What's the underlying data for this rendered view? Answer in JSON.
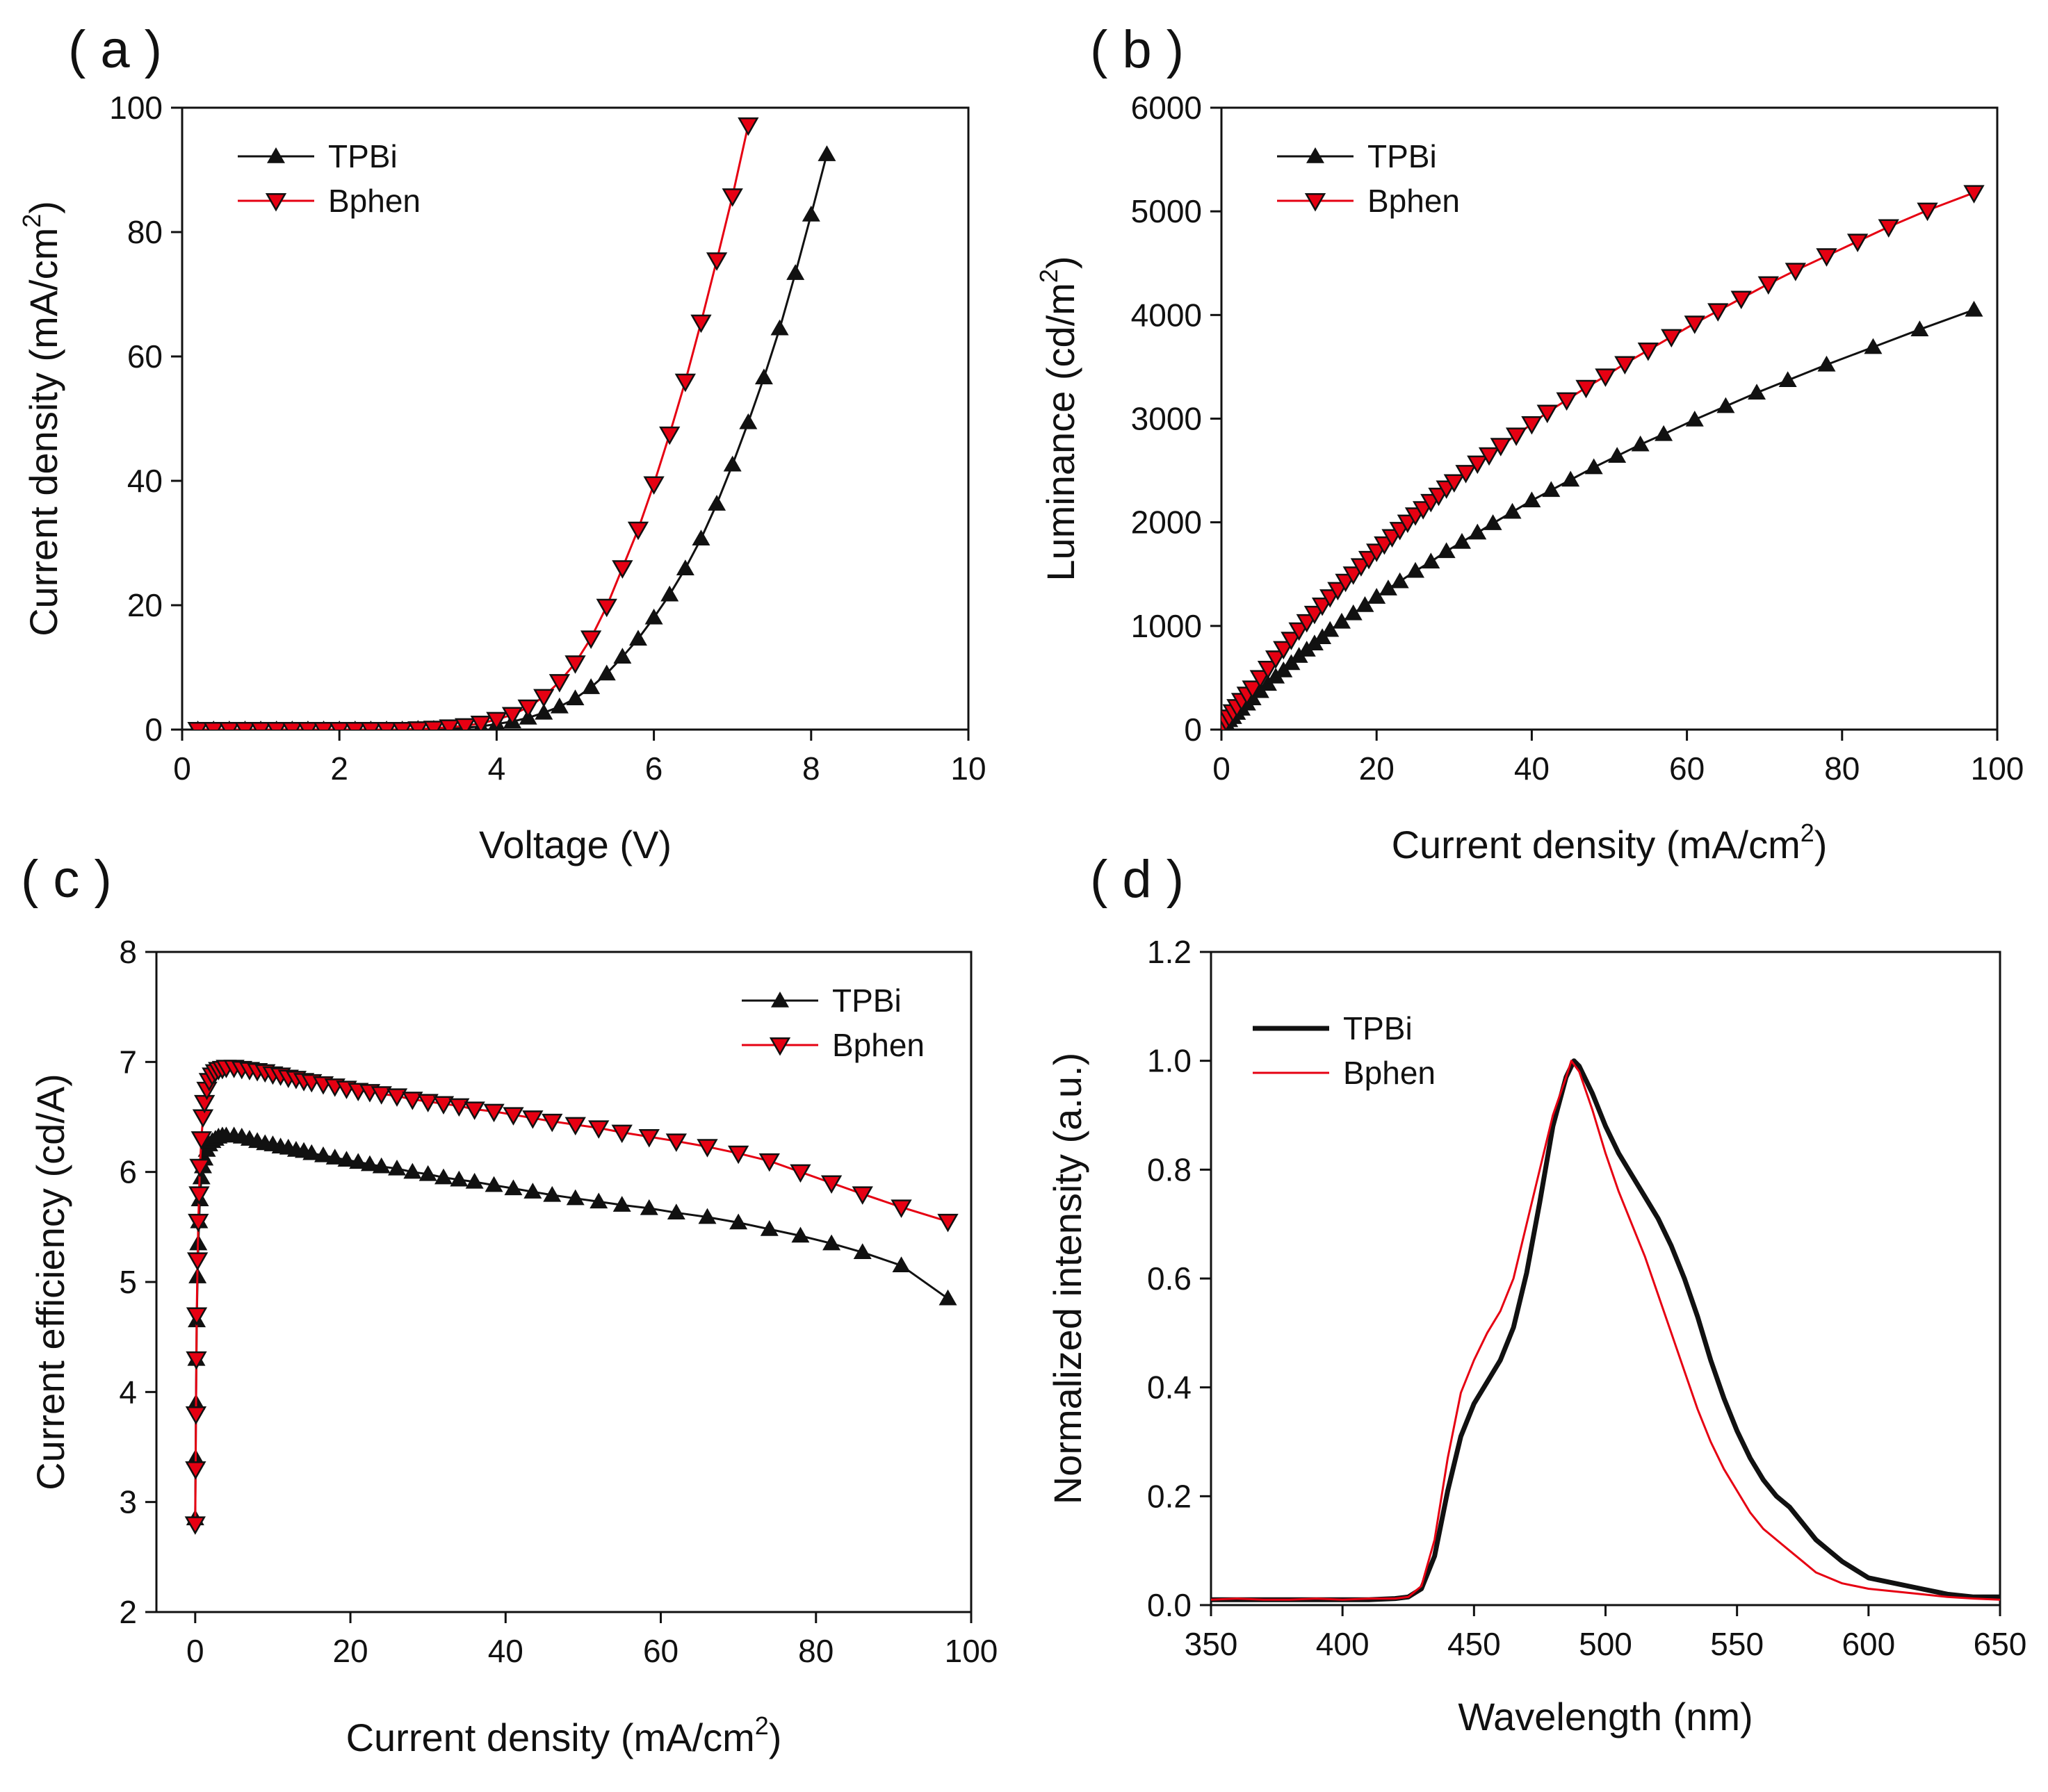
{
  "figure": {
    "panels": [
      {
        "label": "( a )"
      },
      {
        "label": "( b )"
      },
      {
        "label": "( c )"
      },
      {
        "label": "( d )"
      }
    ]
  },
  "colors": {
    "tpbi": "#111111",
    "bphen": "#e60012",
    "bphen_marker_edge": "#111111",
    "axis": "#111111"
  },
  "chart_data": [
    {
      "id": "a",
      "type": "line",
      "xlabel": "Voltage (V)",
      "ylabel": "Current density (mA/cm",
      "ylabel_sup": "2",
      "ylabel_tail": ")",
      "xlim": [
        0,
        10
      ],
      "ylim": [
        0,
        100
      ],
      "xticks": [
        0,
        2,
        4,
        6,
        8,
        10
      ],
      "yticks": [
        0,
        20,
        40,
        60,
        80,
        100
      ],
      "legend": "top-left",
      "series": [
        {
          "name": "TPBi",
          "marker": "triangle-up",
          "x": [
            0.2,
            0.4,
            0.6,
            0.8,
            1.0,
            1.2,
            1.4,
            1.6,
            1.8,
            2.0,
            2.2,
            2.4,
            2.6,
            2.8,
            3.0,
            3.2,
            3.4,
            3.6,
            3.8,
            4.0,
            4.2,
            4.4,
            4.6,
            4.8,
            5.0,
            5.2,
            5.4,
            5.6,
            5.8,
            6.0,
            6.2,
            6.4,
            6.6,
            6.8,
            7.0,
            7.2,
            7.4,
            7.6,
            7.8,
            8.0,
            8.2
          ],
          "y": [
            0,
            0,
            0,
            0,
            0,
            0,
            0,
            0,
            0,
            0,
            0,
            0,
            0,
            0,
            0.1,
            0.1,
            0.2,
            0.3,
            0.5,
            0.9,
            1.3,
            1.9,
            2.7,
            3.7,
            5,
            6.8,
            9,
            11.7,
            14.6,
            18,
            21.7,
            25.9,
            30.7,
            36.3,
            42.6,
            49.4,
            56.6,
            64.5,
            73.4,
            82.8,
            92.5
          ]
        },
        {
          "name": "Bphen",
          "marker": "triangle-down",
          "x": [
            0.2,
            0.4,
            0.6,
            0.8,
            1.0,
            1.2,
            1.4,
            1.6,
            1.8,
            2.0,
            2.2,
            2.4,
            2.6,
            2.8,
            3.0,
            3.2,
            3.4,
            3.6,
            3.8,
            4.0,
            4.2,
            4.4,
            4.6,
            4.8,
            5.0,
            5.2,
            5.4,
            5.6,
            5.8,
            6.0,
            6.2,
            6.4,
            6.6,
            6.8,
            7.0,
            7.2
          ],
          "y": [
            0,
            0,
            0,
            0,
            0,
            0,
            0,
            0,
            0,
            0,
            0,
            0,
            0,
            0,
            0.1,
            0.2,
            0.4,
            0.6,
            1,
            1.6,
            2.4,
            3.6,
            5.3,
            7.7,
            10.7,
            14.7,
            19.8,
            26,
            32.2,
            39.5,
            47.5,
            56,
            65.5,
            75.5,
            85.8,
            97.2
          ]
        }
      ]
    },
    {
      "id": "b",
      "type": "line",
      "xlabel": "Current density (mA/cm",
      "xlabel_sup": "2",
      "xlabel_tail": ")",
      "ylabel": "Luminance (cd/m",
      "ylabel_sup": "2",
      "ylabel_tail": ")",
      "xlim": [
        0,
        100
      ],
      "ylim": [
        0,
        6000
      ],
      "xticks": [
        0,
        20,
        40,
        60,
        80,
        100
      ],
      "yticks": [
        0,
        1000,
        2000,
        3000,
        4000,
        5000,
        6000
      ],
      "legend": "top-left",
      "series": [
        {
          "name": "TPBi",
          "marker": "triangle-up",
          "x": [
            0,
            0.3,
            0.6,
            1,
            1.5,
            2,
            2.6,
            3.3,
            4,
            5,
            6,
            7,
            8,
            9,
            10,
            11,
            12,
            13,
            14,
            15.5,
            17,
            18.5,
            20,
            21.5,
            23,
            25,
            27,
            29,
            31,
            33,
            35,
            37.5,
            40,
            42.5,
            45,
            48,
            51,
            54,
            57,
            61,
            65,
            69,
            73,
            78,
            84,
            90,
            97
          ],
          "y": [
            0,
            30,
            60,
            90,
            120,
            160,
            200,
            250,
            300,
            370,
            440,
            510,
            570,
            640,
            710,
            770,
            830,
            890,
            960,
            1040,
            1120,
            1200,
            1280,
            1360,
            1430,
            1530,
            1620,
            1720,
            1810,
            1900,
            1990,
            2100,
            2210,
            2310,
            2410,
            2530,
            2640,
            2750,
            2850,
            2990,
            3120,
            3250,
            3370,
            3520,
            3690,
            3860,
            4050
          ]
        },
        {
          "name": "Bphen",
          "marker": "triangle-down",
          "x": [
            0,
            0.3,
            0.6,
            1,
            1.5,
            2,
            2.6,
            3.3,
            4,
            5,
            6,
            7,
            8,
            9,
            10,
            11,
            12,
            13,
            14,
            15,
            16,
            17,
            18,
            19,
            20,
            21,
            22,
            23,
            24,
            25,
            26,
            27,
            28,
            29,
            30,
            31.5,
            33,
            34.5,
            36,
            38,
            40,
            42,
            44.5,
            47,
            49.5,
            52,
            55,
            58,
            61,
            64,
            67,
            70.5,
            74,
            78,
            82,
            86,
            91,
            97
          ],
          "y": [
            0,
            40,
            80,
            120,
            170,
            220,
            280,
            340,
            400,
            500,
            590,
            690,
            780,
            870,
            960,
            1040,
            1120,
            1200,
            1280,
            1350,
            1430,
            1500,
            1580,
            1650,
            1720,
            1790,
            1860,
            1930,
            2000,
            2070,
            2130,
            2200,
            2260,
            2330,
            2390,
            2480,
            2570,
            2650,
            2740,
            2840,
            2950,
            3060,
            3180,
            3300,
            3410,
            3530,
            3660,
            3790,
            3920,
            4040,
            4160,
            4300,
            4430,
            4570,
            4710,
            4850,
            5010,
            5180
          ]
        }
      ]
    },
    {
      "id": "c",
      "type": "line",
      "xlabel": "Current density (mA/cm",
      "xlabel_sup": "2",
      "xlabel_tail": ")",
      "ylabel": "Current efficiency (cd/A)",
      "xlim": [
        -5,
        100
      ],
      "ylim": [
        2,
        8
      ],
      "xticks": [
        0,
        20,
        40,
        60,
        80,
        100
      ],
      "yticks": [
        2,
        3,
        4,
        5,
        6,
        7,
        8
      ],
      "legend": "top-right",
      "series": [
        {
          "name": "TPBi",
          "marker": "triangle-up",
          "x": [
            0,
            0.05,
            0.1,
            0.15,
            0.2,
            0.3,
            0.4,
            0.5,
            0.6,
            0.8,
            1,
            1.2,
            1.5,
            1.8,
            2.2,
            2.6,
            3,
            3.5,
            4,
            5,
            6,
            7,
            8,
            9,
            10,
            11,
            12,
            13,
            14,
            15,
            16.5,
            18,
            19.5,
            21,
            22.5,
            24,
            26,
            28,
            30,
            32,
            34,
            36,
            38.5,
            41,
            43.5,
            46,
            49,
            52,
            55,
            58.5,
            62,
            66,
            70,
            74,
            78,
            82,
            86,
            91,
            97
          ],
          "y": [
            2.85,
            3.4,
            3.9,
            4.3,
            4.65,
            5.05,
            5.35,
            5.55,
            5.75,
            5.95,
            6.05,
            6.12,
            6.2,
            6.25,
            6.28,
            6.3,
            6.32,
            6.33,
            6.33,
            6.33,
            6.32,
            6.3,
            6.28,
            6.26,
            6.25,
            6.23,
            6.22,
            6.2,
            6.19,
            6.17,
            6.15,
            6.13,
            6.11,
            6.09,
            6.07,
            6.05,
            6.03,
            6.0,
            5.98,
            5.95,
            5.93,
            5.91,
            5.88,
            5.85,
            5.82,
            5.79,
            5.76,
            5.73,
            5.7,
            5.67,
            5.63,
            5.59,
            5.54,
            5.48,
            5.42,
            5.35,
            5.27,
            5.15,
            4.85
          ]
        },
        {
          "name": "Bphen",
          "marker": "triangle-down",
          "x": [
            0,
            0.05,
            0.1,
            0.15,
            0.2,
            0.3,
            0.4,
            0.5,
            0.6,
            0.8,
            1,
            1.2,
            1.5,
            1.8,
            2.2,
            2.6,
            3,
            3.5,
            4,
            5,
            6,
            7,
            8,
            9,
            10,
            11,
            12,
            13,
            14,
            15,
            16.5,
            18,
            19.5,
            21,
            22.5,
            24,
            26,
            28,
            30,
            32,
            34,
            36,
            38.5,
            41,
            43.5,
            46,
            49,
            52,
            55,
            58.5,
            62,
            66,
            70,
            74,
            78,
            82,
            86,
            91,
            97
          ],
          "y": [
            2.8,
            3.3,
            3.8,
            4.3,
            4.7,
            5.2,
            5.55,
            5.8,
            6.05,
            6.3,
            6.5,
            6.63,
            6.75,
            6.83,
            6.88,
            6.91,
            6.93,
            6.94,
            6.95,
            6.95,
            6.94,
            6.93,
            6.92,
            6.91,
            6.89,
            6.88,
            6.86,
            6.85,
            6.83,
            6.82,
            6.8,
            6.78,
            6.76,
            6.74,
            6.73,
            6.71,
            6.69,
            6.66,
            6.64,
            6.62,
            6.6,
            6.57,
            6.55,
            6.52,
            6.49,
            6.46,
            6.43,
            6.4,
            6.36,
            6.32,
            6.28,
            6.23,
            6.17,
            6.1,
            6.0,
            5.9,
            5.8,
            5.68,
            5.55
          ]
        }
      ]
    },
    {
      "id": "d",
      "type": "line",
      "xlabel": "Wavelength (nm)",
      "ylabel": "Normalized intensity (a.u.)",
      "xlim": [
        350,
        650
      ],
      "ylim": [
        0.0,
        1.2
      ],
      "xticks": [
        350,
        400,
        450,
        500,
        550,
        600,
        650
      ],
      "yticks": [
        0.0,
        0.2,
        0.4,
        0.6,
        0.8,
        1.0,
        1.2
      ],
      "ytick_labels": [
        "0.0",
        "0.2",
        "0.4",
        "0.6",
        "0.8",
        "1.0",
        "1.2"
      ],
      "legend": "top-left",
      "series": [
        {
          "name": "TPBi",
          "marker": "none",
          "linewidth": "thick",
          "x": [
            350,
            360,
            370,
            380,
            390,
            400,
            410,
            420,
            425,
            430,
            435,
            440,
            445,
            450,
            455,
            460,
            465,
            470,
            475,
            480,
            485,
            488,
            490,
            495,
            500,
            505,
            510,
            515,
            520,
            525,
            530,
            535,
            540,
            545,
            550,
            555,
            560,
            565,
            570,
            575,
            580,
            585,
            590,
            595,
            600,
            610,
            620,
            630,
            640,
            650
          ],
          "y": [
            0.01,
            0.01,
            0.01,
            0.01,
            0.01,
            0.01,
            0.01,
            0.012,
            0.015,
            0.03,
            0.09,
            0.21,
            0.31,
            0.37,
            0.41,
            0.45,
            0.51,
            0.61,
            0.74,
            0.88,
            0.97,
            1.0,
            0.99,
            0.94,
            0.88,
            0.83,
            0.79,
            0.75,
            0.71,
            0.66,
            0.6,
            0.53,
            0.45,
            0.38,
            0.32,
            0.27,
            0.23,
            0.2,
            0.18,
            0.15,
            0.12,
            0.1,
            0.08,
            0.065,
            0.05,
            0.04,
            0.03,
            0.02,
            0.015,
            0.015
          ]
        },
        {
          "name": "Bphen",
          "marker": "none",
          "linewidth": "thin",
          "x": [
            350,
            360,
            370,
            380,
            390,
            400,
            410,
            420,
            425,
            430,
            435,
            440,
            445,
            450,
            455,
            460,
            465,
            470,
            475,
            480,
            485,
            487,
            490,
            495,
            500,
            505,
            510,
            515,
            520,
            525,
            530,
            535,
            540,
            545,
            550,
            555,
            560,
            565,
            570,
            575,
            580,
            590,
            600,
            610,
            620,
            630,
            640,
            650
          ],
          "y": [
            0.01,
            0.012,
            0.01,
            0.01,
            0.012,
            0.01,
            0.012,
            0.012,
            0.015,
            0.035,
            0.12,
            0.27,
            0.39,
            0.45,
            0.5,
            0.54,
            0.6,
            0.7,
            0.8,
            0.9,
            0.97,
            1.0,
            0.98,
            0.91,
            0.83,
            0.76,
            0.7,
            0.64,
            0.57,
            0.5,
            0.43,
            0.36,
            0.3,
            0.25,
            0.21,
            0.17,
            0.14,
            0.12,
            0.1,
            0.08,
            0.06,
            0.04,
            0.03,
            0.025,
            0.02,
            0.015,
            0.012,
            0.01
          ]
        }
      ]
    }
  ]
}
